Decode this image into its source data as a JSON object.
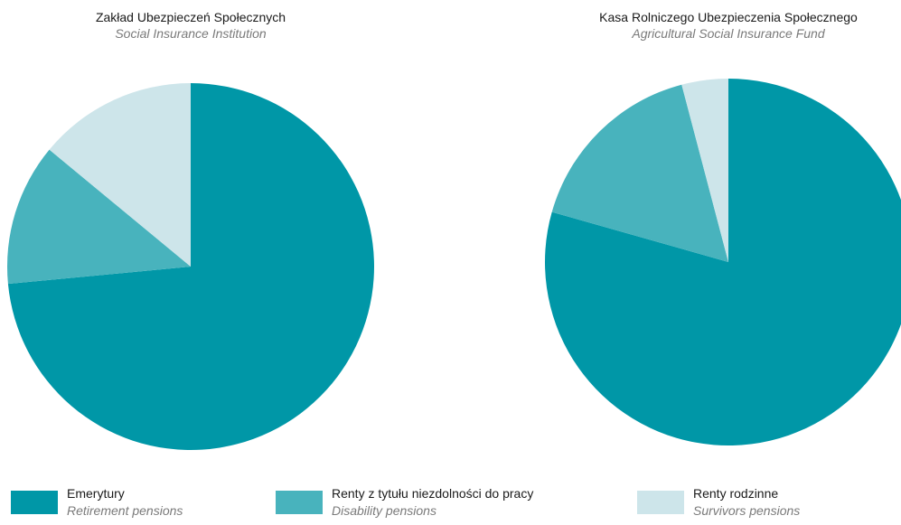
{
  "colors": {
    "retirement": "#0097a7",
    "disability": "#48b3bd",
    "survivors": "#cde5ea"
  },
  "chart_data": [
    {
      "type": "pie",
      "title": "Zakład Ubezpieczeń Społecznych",
      "subtitle": "Social Insurance Institution",
      "slices": [
        {
          "label": "Emerytury",
          "value": 73.5,
          "color": "#0097a7"
        },
        {
          "label": "Renty z tytułu niezdolności do pracy",
          "value": 12.5,
          "color": "#48b3bd"
        },
        {
          "label": "Renty rodzinne",
          "value": 14.0,
          "color": "#cde5ea"
        }
      ]
    },
    {
      "type": "pie",
      "title": "Kasa Rolniczego Ubezpieczenia Społecznego",
      "subtitle": "Agricultural Social Insurance Fund",
      "slices": [
        {
          "label": "Emerytury",
          "value": 79.4,
          "color": "#0097a7"
        },
        {
          "label": "Renty z tytułu niezdolności do pracy",
          "value": 16.5,
          "color": "#48b3bd"
        },
        {
          "label": "Renty rodzinne",
          "value": 4.1,
          "color": "#cde5ea"
        }
      ]
    }
  ],
  "legend": [
    {
      "label": "Emerytury",
      "sublabel": "Retirement pensions",
      "color": "#0097a7"
    },
    {
      "label": "Renty z tytułu niezdolności do pracy",
      "sublabel": "Disability pensions",
      "color": "#48b3bd"
    },
    {
      "label": "Renty rodzinne",
      "sublabel": "Survivors pensions",
      "color": "#cde5ea"
    }
  ]
}
